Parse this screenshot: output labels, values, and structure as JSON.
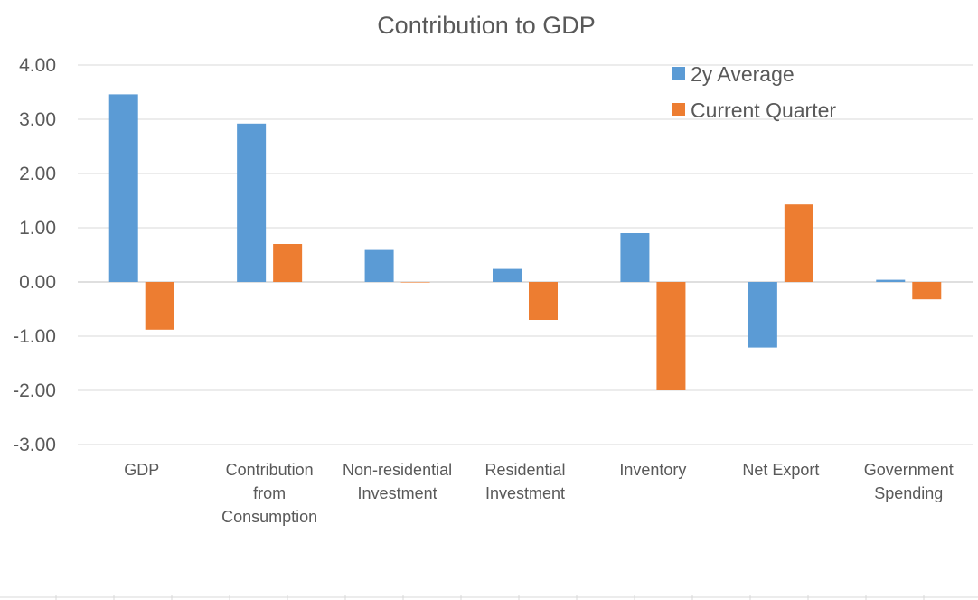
{
  "colors": {
    "series_1": "#5B9BD5",
    "series_2": "#ED7D31",
    "grid": "#D9D9D9",
    "axis": "#BFBFBF",
    "text": "#595959"
  },
  "chart_data": {
    "type": "bar",
    "title": "Contribution to GDP",
    "xlabel": "",
    "ylabel": "",
    "ylim": [
      -3,
      4
    ],
    "yticks": [
      4,
      3,
      2,
      1,
      0,
      -1,
      -2,
      -3
    ],
    "ytick_labels": [
      "4.00",
      "3.00",
      "2.00",
      "1.00",
      "0.00",
      "-1.00",
      "-2.00",
      "-3.00"
    ],
    "grid": true,
    "legend_position": "top-right",
    "categories": [
      [
        "GDP"
      ],
      [
        "Contribution",
        "from",
        "Consumption"
      ],
      [
        "Non-residential",
        "Investment"
      ],
      [
        "Residential",
        "Investment"
      ],
      [
        "Inventory"
      ],
      [
        "Net Export"
      ],
      [
        "Government",
        "Spending"
      ]
    ],
    "series": [
      {
        "name": "2y Average",
        "values": [
          3.46,
          2.92,
          0.59,
          0.24,
          0.9,
          -1.21,
          0.04
        ]
      },
      {
        "name": "Current Quarter",
        "values": [
          -0.88,
          0.7,
          0.0,
          -0.7,
          -2.0,
          1.43,
          -0.32
        ]
      }
    ]
  }
}
